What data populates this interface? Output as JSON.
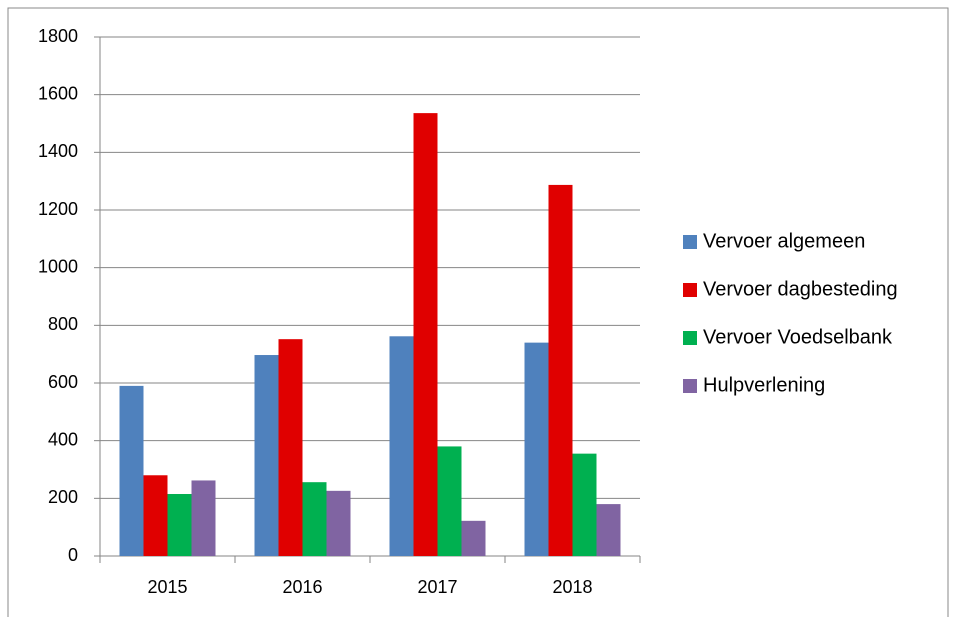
{
  "chart_data": {
    "type": "bar",
    "categories": [
      "2015",
      "2016",
      "2017",
      "2018"
    ],
    "series": [
      {
        "name": "Vervoer algemeen",
        "color": "#4f81bd",
        "values": [
          590,
          697,
          762,
          740
        ]
      },
      {
        "name": "Vervoer dagbesteding",
        "color": "#e00000",
        "values": [
          280,
          752,
          1536,
          1287
        ]
      },
      {
        "name": "Vervoer Voedselbank",
        "color": "#00b050",
        "values": [
          215,
          256,
          380,
          355
        ]
      },
      {
        "name": "Hulpverlening",
        "color": "#8064a2",
        "values": [
          262,
          226,
          122,
          180
        ]
      }
    ],
    "ylim": [
      0,
      1800
    ],
    "yticks": [
      0,
      200,
      400,
      600,
      800,
      1000,
      1200,
      1400,
      1600,
      1800
    ],
    "grid": true,
    "legend": "right"
  }
}
